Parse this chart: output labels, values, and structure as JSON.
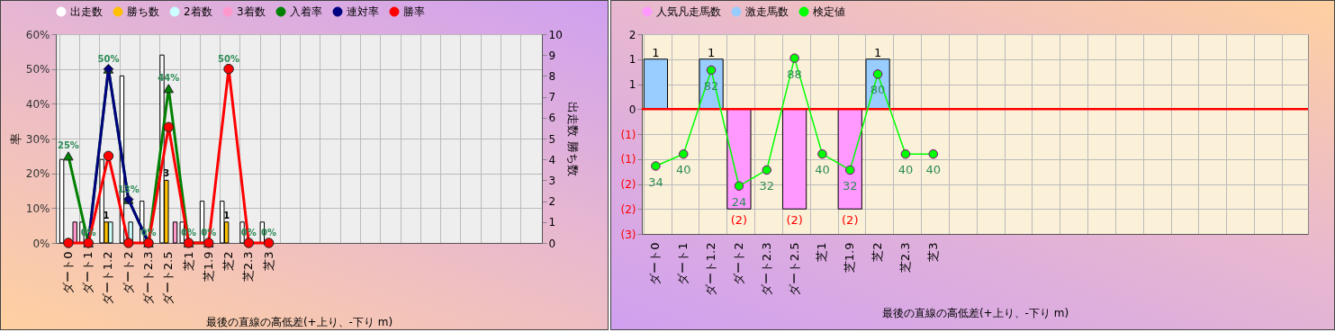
{
  "chart_data": [
    {
      "type": "bar",
      "xlabel": "最後の直線の高低差(+上り、-下り m)",
      "ylabel": "率",
      "y2label": "出走数 勝ち数",
      "categories": [
        "ダート0",
        "ダート1",
        "ダート1.2",
        "ダート2",
        "ダート2.3",
        "ダート2.5",
        "芝1",
        "芝1.9",
        "芝2",
        "芝2.3",
        "芝3",
        null,
        null,
        null,
        null,
        null,
        null,
        null,
        null,
        null,
        null,
        null,
        null,
        null
      ],
      "series": [
        {
          "name": "出走数",
          "color": "#ffffff",
          "axis": "y2",
          "values": [
            4,
            1,
            4,
            8,
            2,
            9,
            1,
            2,
            2,
            1,
            1,
            null,
            null,
            null,
            null,
            null,
            null,
            null,
            null,
            null,
            null,
            null,
            null,
            null
          ]
        },
        {
          "name": "勝ち数",
          "color": "#ffc000",
          "axis": "y2",
          "values": [
            null,
            null,
            1,
            null,
            null,
            3,
            null,
            null,
            1,
            null,
            null,
            null,
            null,
            null,
            null,
            null,
            null,
            null,
            null,
            null,
            null,
            null,
            null,
            null
          ],
          "value_labels": [
            null,
            null,
            "1",
            null,
            null,
            "3",
            null,
            null,
            "1",
            null,
            null,
            null,
            null,
            null,
            null,
            null,
            null,
            null,
            null,
            null,
            null,
            null,
            null,
            null
          ]
        },
        {
          "name": "2着数",
          "color": "#ccffff",
          "axis": "y2",
          "values": [
            null,
            null,
            1,
            1,
            null,
            null,
            null,
            null,
            null,
            null,
            null,
            null,
            null,
            null,
            null,
            null,
            null,
            null,
            null,
            null,
            null,
            null,
            null,
            null
          ]
        },
        {
          "name": "3着数",
          "color": "#ff99cc",
          "axis": "y2",
          "values": [
            1,
            null,
            null,
            null,
            null,
            1,
            null,
            null,
            null,
            null,
            null,
            null,
            null,
            null,
            null,
            null,
            null,
            null,
            null,
            null,
            null,
            null,
            null,
            null
          ]
        },
        {
          "name": "入着率",
          "type": "line",
          "marker": "triangle",
          "color": "#008000",
          "values": [
            25,
            0,
            50,
            12.5,
            0,
            44.4,
            0,
            0,
            null,
            null,
            null,
            null,
            null,
            null,
            null,
            null,
            null,
            null,
            null,
            null,
            null,
            null,
            null,
            null
          ],
          "value_labels": [
            "25%",
            "0%",
            "50%",
            "13%",
            "0%",
            "44%",
            "0%",
            "0%",
            null,
            null,
            null,
            null,
            null,
            null,
            null,
            null,
            null,
            null,
            null,
            null,
            null,
            null,
            null,
            null
          ]
        },
        {
          "name": "連対率",
          "type": "line",
          "marker": "diamond",
          "color": "#000080",
          "values": [
            null,
            0,
            50,
            12.5,
            0,
            null,
            null,
            null,
            null,
            null,
            null,
            null,
            null,
            null,
            null,
            null,
            null,
            null,
            null,
            null,
            null,
            null,
            null,
            null
          ]
        },
        {
          "name": "勝率",
          "type": "line",
          "marker": "circle",
          "color": "#ff0000",
          "values": [
            0,
            0,
            25,
            0,
            0,
            33.3,
            0,
            0,
            50,
            0,
            0,
            null,
            null,
            null,
            null,
            null,
            null,
            null,
            null,
            null,
            null,
            null,
            null,
            null
          ],
          "value_labels": [
            null,
            null,
            null,
            null,
            null,
            null,
            null,
            null,
            "50%",
            "0%",
            "0%",
            null,
            null,
            null,
            null,
            null,
            null,
            null,
            null,
            null,
            null,
            null,
            null,
            null
          ]
        }
      ],
      "ylim": [
        0,
        60
      ],
      "yticks": [
        {
          "value": 0,
          "label": "0%"
        },
        {
          "value": 10,
          "label": "10%"
        },
        {
          "value": 20,
          "label": "20%"
        },
        {
          "value": 30,
          "label": "30%"
        },
        {
          "value": 40,
          "label": "40%"
        },
        {
          "value": 50,
          "label": "50%"
        },
        {
          "value": 60,
          "label": "60%"
        }
      ],
      "y2lim": [
        0,
        10
      ],
      "y2ticks": [
        0,
        1,
        2,
        3,
        4,
        5,
        6,
        7,
        8,
        9,
        10
      ],
      "grid": true,
      "legend": "top"
    },
    {
      "type": "bar",
      "xlabel": "最後の直線の高低差(+上り、-下り m)",
      "stacked": true,
      "categories": [
        "ダート0",
        "ダート1",
        "ダート1.2",
        "ダート2",
        "ダート2.3",
        "ダート2.5",
        "芝1",
        "芝1.9",
        "芝2",
        "芝2.3",
        "芝3",
        null,
        null,
        null,
        null,
        null,
        null,
        null,
        null,
        null,
        null,
        null,
        null,
        null
      ],
      "series": [
        {
          "name": "人気凡走馬数",
          "color": "#ff99ff",
          "values": [
            null,
            null,
            null,
            -2,
            null,
            -2,
            null,
            -2,
            null,
            null,
            null,
            null,
            null,
            null,
            null,
            null,
            null,
            null,
            null,
            null,
            null,
            null,
            null,
            null
          ],
          "value_labels": [
            null,
            null,
            null,
            "(2)",
            null,
            "(2)",
            null,
            "(2)",
            null,
            null,
            null,
            null,
            null,
            null,
            null,
            null,
            null,
            null,
            null,
            null,
            null,
            null,
            null,
            null
          ]
        },
        {
          "name": "激走馬数",
          "color": "#99ccff",
          "values": [
            1,
            null,
            1,
            null,
            null,
            null,
            null,
            null,
            1,
            null,
            null,
            null,
            null,
            null,
            null,
            null,
            null,
            null,
            null,
            null,
            null,
            null,
            null,
            null
          ],
          "value_labels": [
            "1",
            null,
            "1",
            null,
            null,
            null,
            null,
            null,
            "1",
            null,
            null,
            null,
            null,
            null,
            null,
            null,
            null,
            null,
            null,
            null,
            null,
            null,
            null,
            null
          ]
        },
        {
          "name": "検定値",
          "type": "line",
          "marker": "circle",
          "axis": "y2",
          "color": "#00ff00",
          "values": [
            34,
            40,
            82,
            24,
            32,
            88,
            40,
            32,
            80,
            40,
            40,
            null,
            null,
            null,
            null,
            null,
            null,
            null,
            null,
            null,
            null,
            null,
            null,
            null
          ],
          "value_labels": [
            "34",
            "40",
            "82",
            "24",
            "32",
            "88",
            "40",
            "32",
            "80",
            "40",
            "40",
            null,
            null,
            null,
            null,
            null,
            null,
            null,
            null,
            null,
            null,
            null,
            null,
            null
          ]
        }
      ],
      "ylim": [
        -2.5,
        1.5
      ],
      "yticks": [
        {
          "value": 1.5,
          "label": "2"
        },
        1,
        {
          "value": 0.5,
          "label": "1"
        },
        0,
        {
          "value": -0.5,
          "label": "(1)"
        },
        {
          "value": -1,
          "label": "(1)"
        },
        {
          "value": -1.5,
          "label": "(2)"
        },
        {
          "value": -2,
          "label": "(2)"
        },
        {
          "value": -2.5,
          "label": "(3)"
        }
      ],
      "y2lim": [
        0,
        100
      ],
      "ref_lines": [
        {
          "axis": "y",
          "value": 0,
          "color": "#ff0000"
        }
      ],
      "grid": true,
      "legend": "top"
    }
  ]
}
